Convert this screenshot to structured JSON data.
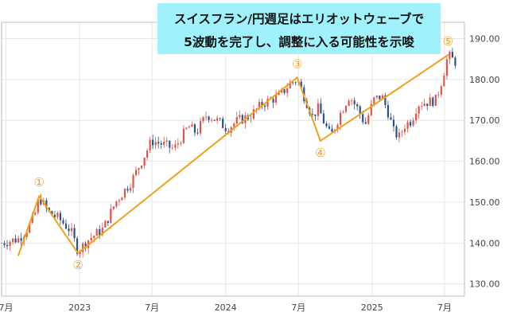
{
  "chart_data": {
    "type": "candlestick",
    "title": "",
    "xlabel": "",
    "ylabel": "",
    "ylim": [
      127,
      194
    ],
    "yticks": [
      130,
      140,
      150,
      160,
      170,
      180,
      190
    ],
    "ytick_labels": [
      "130.00",
      "140.00",
      "150.00",
      "160.00",
      "170.00",
      "180.00",
      "190.00"
    ],
    "xlim": [
      "2022-06-20",
      "2025-08-20"
    ],
    "xticks": [
      {
        "date": "2022-07-01",
        "label": "7月"
      },
      {
        "date": "2023-01-01",
        "label": "2023"
      },
      {
        "date": "2023-07-01",
        "label": "7月"
      },
      {
        "date": "2024-01-01",
        "label": "2024"
      },
      {
        "date": "2024-07-01",
        "label": "7月"
      },
      {
        "date": "2025-01-01",
        "label": "2025"
      },
      {
        "date": "2025-07-01",
        "label": "7月"
      }
    ],
    "grid": true,
    "candle_colors": {
      "up": "#e0534a",
      "down": "#2b4f8c"
    },
    "price_path": [
      [
        "2022-06-20",
        140.0
      ],
      [
        "2022-07-10",
        140.5
      ],
      [
        "2022-08-01",
        141.0
      ],
      [
        "2022-08-20",
        143.0
      ],
      [
        "2022-09-10",
        146.5
      ],
      [
        "2022-09-22",
        151.2
      ],
      [
        "2022-10-15",
        147.5
      ],
      [
        "2022-11-10",
        146.0
      ],
      [
        "2022-12-10",
        143.0
      ],
      [
        "2022-12-28",
        138.0
      ],
      [
        "2023-01-25",
        141.0
      ],
      [
        "2023-03-01",
        143.5
      ],
      [
        "2023-04-01",
        150.0
      ],
      [
        "2023-05-10",
        155.0
      ],
      [
        "2023-06-10",
        161.0
      ],
      [
        "2023-06-30",
        165.0
      ],
      [
        "2023-08-01",
        164.0
      ],
      [
        "2023-08-25",
        163.0
      ],
      [
        "2023-09-30",
        168.5
      ],
      [
        "2023-10-20",
        167.0
      ],
      [
        "2023-11-15",
        171.5
      ],
      [
        "2023-12-10",
        170.0
      ],
      [
        "2024-01-05",
        168.0
      ],
      [
        "2024-02-01",
        170.0
      ],
      [
        "2024-03-01",
        171.0
      ],
      [
        "2024-04-01",
        174.0
      ],
      [
        "2024-05-15",
        176.0
      ],
      [
        "2024-06-10",
        179.0
      ],
      [
        "2024-06-28",
        180.0
      ],
      [
        "2024-07-15",
        176.0
      ],
      [
        "2024-08-05",
        171.0
      ],
      [
        "2024-08-20",
        173.0
      ],
      [
        "2024-09-05",
        169.0
      ],
      [
        "2024-09-20",
        166.0
      ],
      [
        "2024-10-15",
        172.0
      ],
      [
        "2024-11-05",
        176.0
      ],
      [
        "2024-11-25",
        173.0
      ],
      [
        "2024-12-15",
        169.0
      ],
      [
        "2025-01-05",
        175.0
      ],
      [
        "2025-01-25",
        176.0
      ],
      [
        "2025-02-10",
        172.0
      ],
      [
        "2025-02-25",
        167.0
      ],
      [
        "2025-03-10",
        166.0
      ],
      [
        "2025-03-25",
        169.0
      ],
      [
        "2025-04-10",
        170.0
      ],
      [
        "2025-04-25",
        174.0
      ],
      [
        "2025-05-20",
        174.5
      ],
      [
        "2025-06-10",
        175.0
      ],
      [
        "2025-06-25",
        180.0
      ],
      [
        "2025-07-10",
        186.0
      ],
      [
        "2025-07-20",
        185.0
      ],
      [
        "2025-08-01",
        184.0
      ]
    ],
    "wave_lines": [
      {
        "from": {
          "date": "2022-08-01",
          "value": 137.0
        },
        "to": {
          "date": "2022-09-22",
          "value": 151.5
        }
      },
      {
        "from": {
          "date": "2022-09-22",
          "value": 151.5
        },
        "to": {
          "date": "2022-12-28",
          "value": 137.5
        }
      },
      {
        "from": {
          "date": "2022-12-28",
          "value": 137.5
        },
        "to": {
          "date": "2024-06-28",
          "value": 180.5
        }
      },
      {
        "from": {
          "date": "2024-06-28",
          "value": 180.5
        },
        "to": {
          "date": "2024-08-25",
          "value": 165.0
        }
      },
      {
        "from": {
          "date": "2024-08-25",
          "value": 165.0
        },
        "to": {
          "date": "2025-07-10",
          "value": 186.0
        }
      }
    ],
    "wave_color": "#f0a11b",
    "wave_labels": [
      {
        "label": "①",
        "date": "2022-09-22",
        "value": 151.5,
        "position": "above"
      },
      {
        "label": "②",
        "date": "2022-12-28",
        "value": 137.5,
        "position": "below"
      },
      {
        "label": "③",
        "date": "2024-06-28",
        "value": 180.5,
        "position": "above"
      },
      {
        "label": "④",
        "date": "2024-08-25",
        "value": 165.0,
        "position": "below"
      },
      {
        "label": "⑤",
        "date": "2025-07-10",
        "value": 186.0,
        "position": "above"
      }
    ]
  },
  "annotation": {
    "line1": "スイスフラン/円週足はエリオットウェーブで",
    "line2": "5波動を完了し、調整に入る可能性を示唆"
  }
}
